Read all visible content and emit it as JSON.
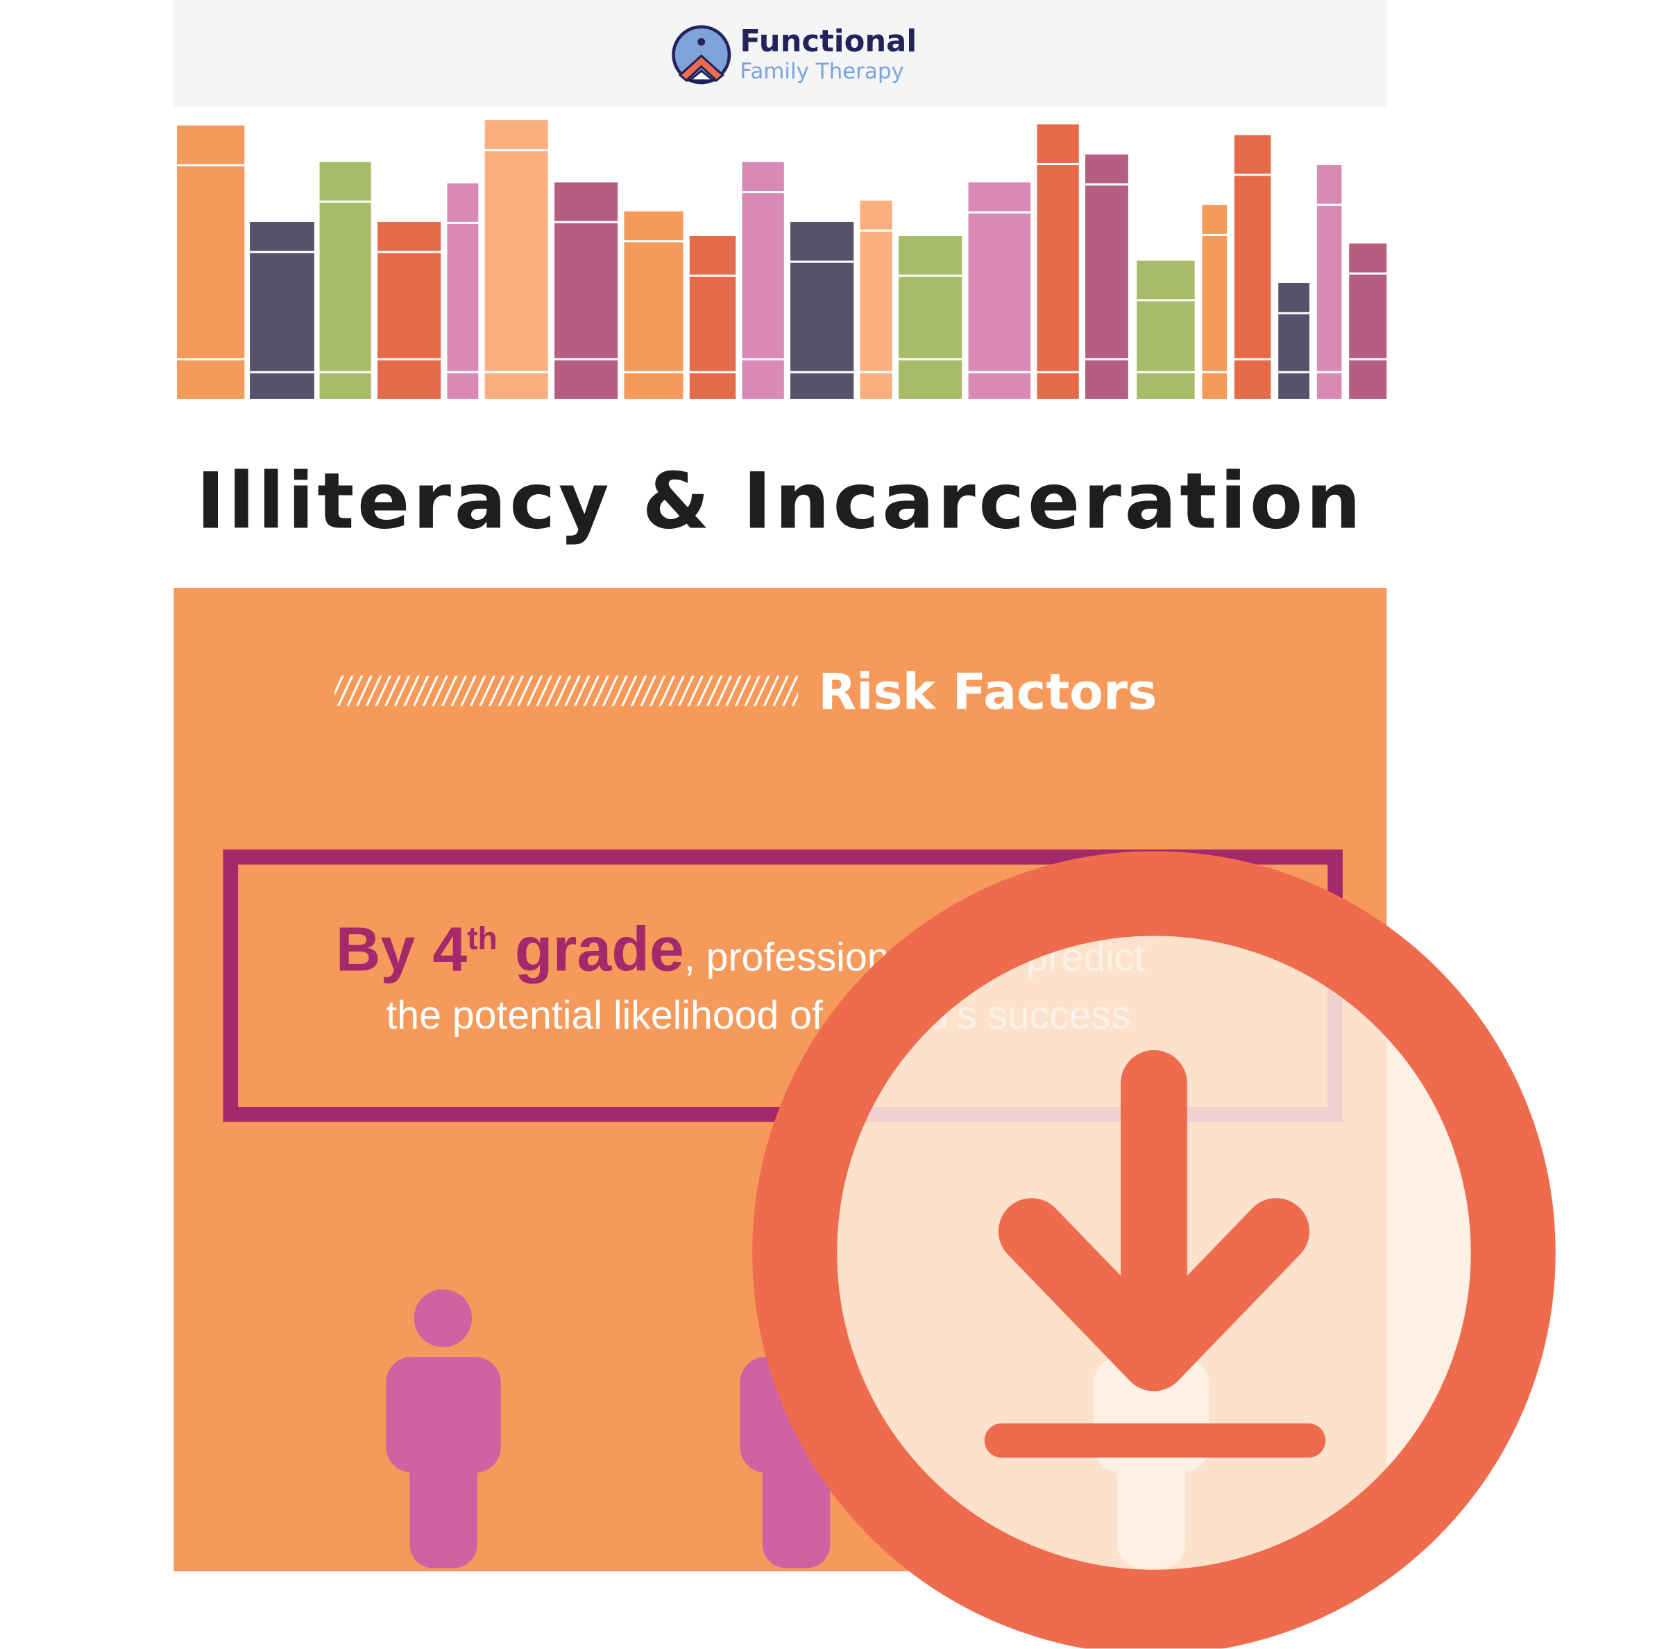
{
  "logo": {
    "line1": "Functional",
    "line2": "Family Therapy"
  },
  "title": "Illiteracy & Incarceration",
  "section": {
    "heading": "Risk Factors"
  },
  "callout": {
    "emphasis_pre": "By 4",
    "emphasis_sup": "th",
    "emphasis_post": " grade",
    "rest_line1": ", professionals can predict",
    "line2": "the potential likelihood of a child’s success"
  },
  "download_button": {
    "icon": "download-icon",
    "color": "#ee6b4d"
  },
  "colors": {
    "panel": "#f59a5a",
    "accent": "#a4296a",
    "figure": "#cf62a3",
    "header_bg": "#f4f5f7"
  },
  "book_colors": [
    "#f49a5a",
    "#55526a",
    "#a8bb68",
    "#e56a4a",
    "#d889b6",
    "#f9b07e",
    "#b55e80"
  ]
}
